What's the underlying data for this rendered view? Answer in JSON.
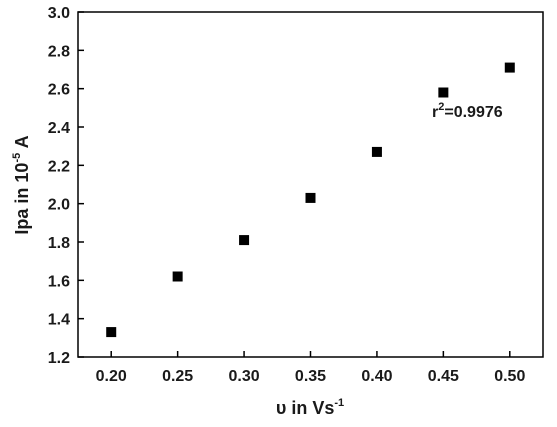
{
  "chart_data": {
    "type": "scatter",
    "xlabel": {
      "base": "υ in Vs",
      "sup": "-1"
    },
    "ylabel": {
      "base": "Ipa in 10",
      "sup": "-5",
      "tail": " A"
    },
    "xlim": [
      0.175,
      0.525
    ],
    "ylim": [
      1.2,
      3.0
    ],
    "x_ticks": [
      "0.20",
      "0.25",
      "0.30",
      "0.35",
      "0.40",
      "0.45",
      "0.50"
    ],
    "y_ticks": [
      "1.2",
      "1.4",
      "1.6",
      "1.8",
      "2.0",
      "2.2",
      "2.4",
      "2.6",
      "2.8",
      "3.0"
    ],
    "grid": false,
    "legend": "none",
    "marker": "square",
    "marker_color": "#000000",
    "series": [
      {
        "x": [
          0.2,
          0.25,
          0.3,
          0.35,
          0.4,
          0.45,
          0.5
        ],
        "y": [
          1.33,
          1.62,
          1.81,
          2.03,
          2.27,
          2.58,
          2.71
        ]
      }
    ],
    "annotation": {
      "prefix": "r",
      "sup": "2",
      "suffix": "=0.9976",
      "x": 0.473,
      "y": 2.43
    }
  }
}
